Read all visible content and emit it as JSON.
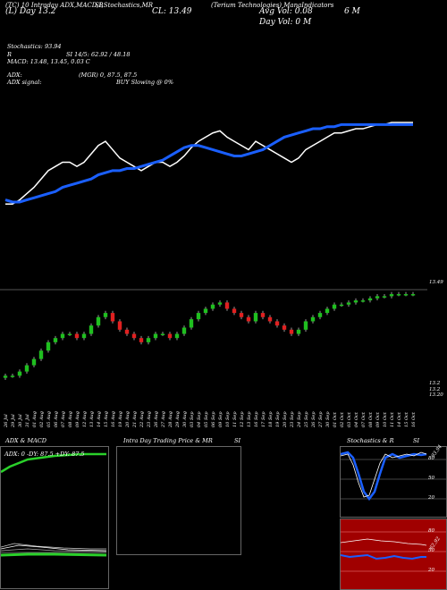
{
  "header": {
    "symbol_info": "(TC) 10 Intraday ADX,MACD,B",
    "l_day_label": "(L) Day",
    "l_day_value": "13.2",
    "stoch_label": "SI,Stochastics,MR",
    "company": "(Terium Technologies) ManaIndicators",
    "cl_label": "CL: 13.49",
    "avg_vol": "Avg Vol: 0.08",
    "six_m": "6  M",
    "day_vol": "Day Vol: 0  M"
  },
  "indicators": {
    "stoch": "Stochastics: 93.94",
    "r": "R",
    "si": "SI 14/5: 62.92 / 48.18",
    "macd": "MACD: 13.48, 13.45, 0.03 C",
    "adx_label": "ADX:",
    "mgr": "(MGR) 0, 87.5, 87.5",
    "adx_signal": "ADX signal:",
    "buy_signal": "BUY Slowing @ 0%"
  },
  "price_axis": {
    "top": "13.49",
    "bottom_a": "13.2",
    "bottom_b": "13.2",
    "bottom_c": "13.20"
  },
  "dates": [
    "26 Jul",
    "29 Jul",
    "30 Jul",
    "31 Jul",
    "01 Aug",
    "02 Aug",
    "05 Aug",
    "06 Aug",
    "07 Aug",
    "08 Aug",
    "09 Aug",
    "12 Aug",
    "13 Aug",
    "14 Aug",
    "15 Aug",
    "16 Aug",
    "19 Aug",
    "20 Aug",
    "21 Aug",
    "22 Aug",
    "23 Aug",
    "26 Aug",
    "27 Aug",
    "28 Aug",
    "29 Aug",
    "30 Aug",
    "03 Sep",
    "04 Sep",
    "05 Sep",
    "06 Sep",
    "09 Sep",
    "10 Sep",
    "11 Sep",
    "12 Sep",
    "13 Sep",
    "16 Sep",
    "17 Sep",
    "18 Sep",
    "19 Sep",
    "20 Sep",
    "23 Sep",
    "24 Sep",
    "25 Sep",
    "26 Sep",
    "27 Sep",
    "30 Sep",
    "01 Oct",
    "02 Oct",
    "03 Oct",
    "04 Oct",
    "07 Oct",
    "08 Oct",
    "09 Oct",
    "10 Oct",
    "11 Oct",
    "14 Oct",
    "15 Oct",
    "16 Oct"
  ],
  "panels": {
    "adx_title": "ADX  & MACD",
    "adx_readout": "ADX: 0   -DY: 87.5  +DY: 87.5",
    "intra_title": "Intra  Day Trading Price  & MR",
    "intra_si": "SI",
    "stoch_title": "Stochastics & R",
    "stoch_si": "SI",
    "stoch_levels": [
      "80",
      "50",
      "20"
    ],
    "stoch_value": "93.94",
    "si_levels": [
      "80",
      "50",
      "20"
    ],
    "si_value": "62.92"
  },
  "colors": {
    "up": "#1fbf1f",
    "down": "#e02020",
    "ma": "#1a5fff",
    "price_line": "#ffffff",
    "si_bg": "#a00000"
  },
  "chart_data": {
    "type": "line",
    "series": [
      {
        "values": [
          13.1,
          13.1,
          13.12,
          13.15,
          13.18,
          13.22,
          13.26,
          13.28,
          13.3,
          13.3,
          13.28,
          13.3,
          13.34,
          13.38,
          13.4,
          13.36,
          13.32,
          13.3,
          13.28,
          13.26,
          13.28,
          13.3,
          13.3,
          13.28,
          13.3,
          13.33,
          13.37,
          13.4,
          13.42,
          13.44,
          13.45,
          13.42,
          13.4,
          13.38,
          13.36,
          13.4,
          13.38,
          13.36,
          13.34,
          13.32,
          13.3,
          13.32,
          13.36,
          13.38,
          13.4,
          13.42,
          13.44,
          13.44,
          13.45,
          13.46,
          13.46,
          13.47,
          13.48,
          13.48,
          13.49,
          13.49,
          13.49,
          13.49
        ]
      },
      {
        "values": [
          13.12,
          13.11,
          13.11,
          13.12,
          13.13,
          13.14,
          13.15,
          13.16,
          13.18,
          13.19,
          13.2,
          13.21,
          13.22,
          13.24,
          13.25,
          13.26,
          13.26,
          13.27,
          13.27,
          13.28,
          13.29,
          13.3,
          13.31,
          13.33,
          13.35,
          13.37,
          13.38,
          13.38,
          13.37,
          13.36,
          13.35,
          13.34,
          13.33,
          13.33,
          13.34,
          13.35,
          13.36,
          13.38,
          13.4,
          13.42,
          13.43,
          13.44,
          13.45,
          13.46,
          13.46,
          13.47,
          13.47,
          13.48,
          13.48,
          13.48,
          13.48,
          13.48,
          13.48,
          13.48,
          13.48,
          13.48,
          13.48,
          13.48
        ]
      }
    ]
  }
}
